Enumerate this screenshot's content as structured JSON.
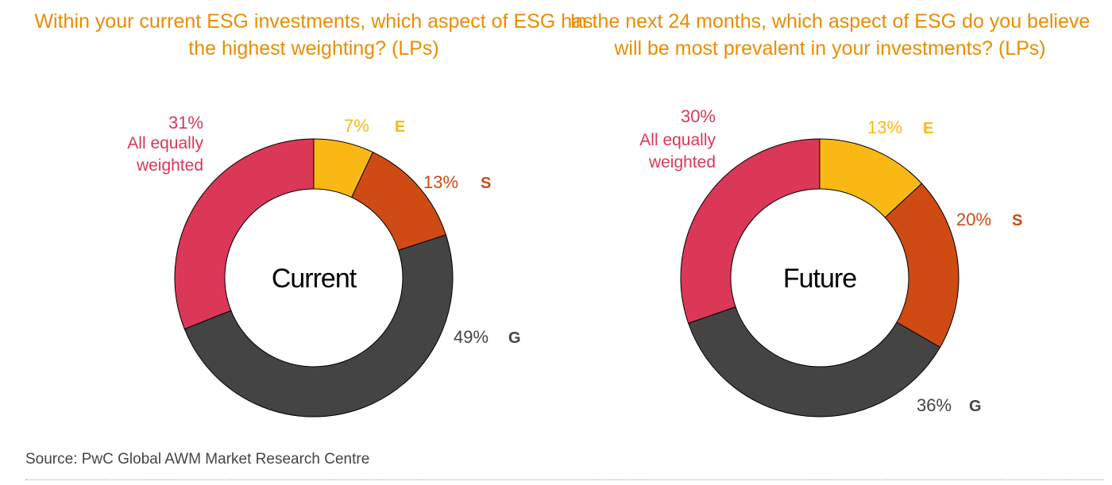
{
  "colors": {
    "title": "#eb8c00",
    "E": "#f9b814",
    "S": "#d04a14",
    "G": "#444444",
    "All": "#db3757",
    "center_text": "#000000"
  },
  "chart_data": [
    {
      "type": "donut",
      "title": "Within your current ESG investments, which aspect of ESG has the highest weighting? (LPs)",
      "center_label": "Current",
      "slices": [
        {
          "key": "E",
          "label": "E",
          "value": 7,
          "value_text": "7%"
        },
        {
          "key": "S",
          "label": "S",
          "value": 13,
          "value_text": "13%"
        },
        {
          "key": "G",
          "label": "G",
          "value": 49,
          "value_text": "49%"
        },
        {
          "key": "All",
          "label": "All equally weighted",
          "value": 31,
          "value_text": "31%"
        }
      ]
    },
    {
      "type": "donut",
      "title": "In the next 24 months, which aspect of ESG do you believe will be most prevalent in your investments? (LPs)",
      "center_label": "Future",
      "slices": [
        {
          "key": "E",
          "label": "E",
          "value": 13,
          "value_text": "13%"
        },
        {
          "key": "S",
          "label": "S",
          "value": 20,
          "value_text": "20%"
        },
        {
          "key": "G",
          "label": "G",
          "value": 36,
          "value_text": "36%"
        },
        {
          "key": "All",
          "label": "All equally weighted",
          "value": 30,
          "value_text": "30%"
        }
      ]
    }
  ],
  "source": "Source: PwC Global AWM Market Research Centre"
}
